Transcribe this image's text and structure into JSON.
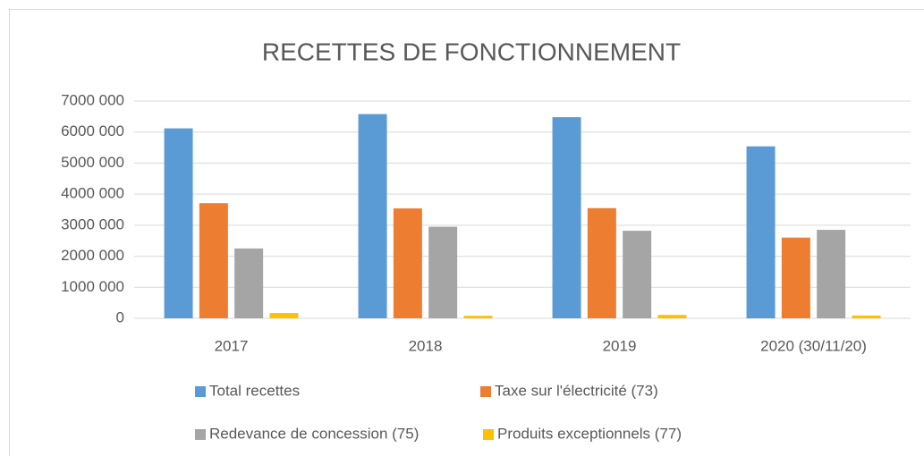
{
  "chart_data": {
    "type": "bar",
    "title": "RECETTES DE FONCTIONNEMENT",
    "categories": [
      "2017",
      "2018",
      "2019",
      "2020 (30/11/20)"
    ],
    "series": [
      {
        "name": "Total recettes",
        "color": "#5b9bd5",
        "values": [
          6120000,
          6580000,
          6480000,
          5540000
        ]
      },
      {
        "name": "Taxe sur l'électricité (73)",
        "color": "#ed7d31",
        "values": [
          3710000,
          3540000,
          3550000,
          2600000
        ]
      },
      {
        "name": "Redevance de concession (75)",
        "color": "#a5a5a5",
        "values": [
          2250000,
          2950000,
          2820000,
          2850000
        ]
      },
      {
        "name": "Produits exceptionnels (77)",
        "color": "#ffc000",
        "values": [
          170000,
          80000,
          110000,
          90000
        ]
      }
    ],
    "ylim": [
      0,
      7000000
    ],
    "yticks": [
      0,
      {
        "value": 1000000,
        "label": "1000 000"
      },
      {
        "value": 2000000,
        "label": "2000 000"
      },
      {
        "value": 3000000,
        "label": "3000 000"
      },
      {
        "value": 4000000,
        "label": "4000 000"
      },
      {
        "value": 5000000,
        "label": "5000 000"
      },
      {
        "value": 6000000,
        "label": "6000 000"
      },
      {
        "value": 7000000,
        "label": "7000 000"
      }
    ],
    "grid": true,
    "legend": "bottom"
  }
}
